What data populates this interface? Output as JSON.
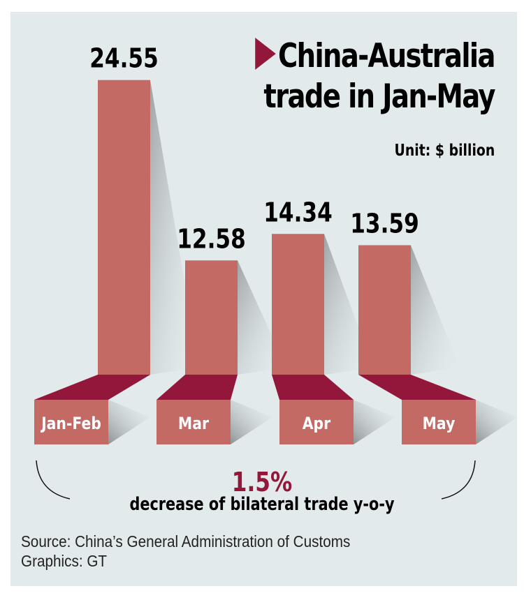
{
  "chart_data": {
    "type": "bar",
    "title": "China-Australia trade in Jan-May",
    "unit": "Unit: $ billion",
    "categories": [
      "Jan-Feb",
      "Mar",
      "Apr",
      "May"
    ],
    "values": [
      24.55,
      12.58,
      14.34,
      13.59
    ],
    "value_labels": [
      "24.55",
      "12.58",
      "14.34",
      "13.59"
    ],
    "ylabel": "",
    "xlabel": "",
    "grid": false
  },
  "title_line1": "China-Australia",
  "title_line2": "trade in Jan-May",
  "highlight": {
    "value": "1.5%",
    "text": "decrease of bilateral trade y-o-y"
  },
  "source": "Source: China’s General Administration of Customs",
  "credit": "Graphics: GT",
  "colors": {
    "bar": "#c46a64",
    "bar_top": "#93173a",
    "background": "#e2eaeb",
    "accent": "#93173a"
  }
}
